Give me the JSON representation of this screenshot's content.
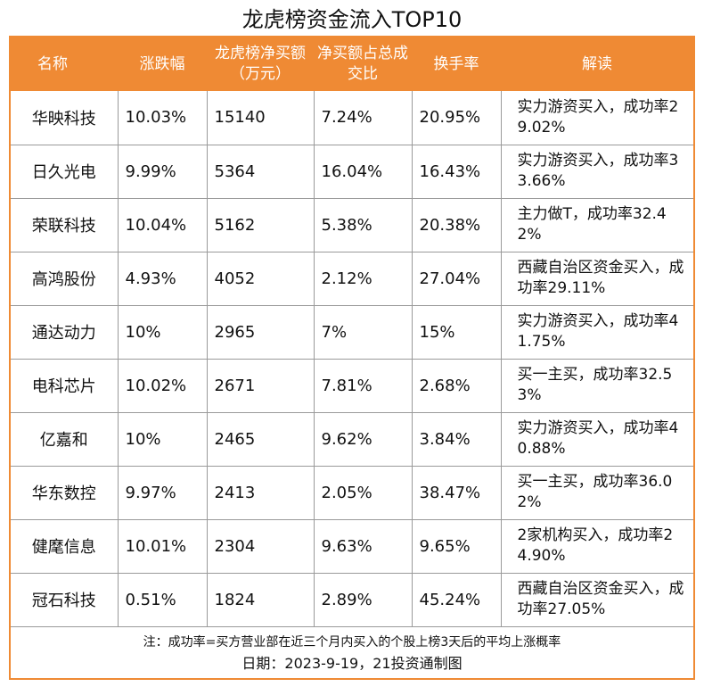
{
  "title": "龙虎榜资金流入TOP10",
  "headers": [
    "名称",
    "涨跌幅",
    "龙虎榜净买额（万元）",
    "净买额占总成交比",
    "换手率",
    "解读"
  ],
  "rows": [
    {
      "name": "华映科技",
      "change": "10.03%",
      "net_buy": "15140",
      "ratio": "7.24%",
      "turnover": "20.95%",
      "note": "实力游资买入，成功率29.02%"
    },
    {
      "name": "日久光电",
      "change": "9.99%",
      "net_buy": "5364",
      "ratio": "16.04%",
      "turnover": "16.43%",
      "note": "实力游资买入，成功率33.66%"
    },
    {
      "name": "荣联科技",
      "change": "10.04%",
      "net_buy": "5162",
      "ratio": "5.38%",
      "turnover": "20.38%",
      "note": "主力做T，成功率32.42%"
    },
    {
      "name": "高鸿股份",
      "change": "4.93%",
      "net_buy": "4052",
      "ratio": "2.12%",
      "turnover": "27.04%",
      "note": "西藏自治区资金买入，成功率29.11%"
    },
    {
      "name": "通达动力",
      "change": "10%",
      "net_buy": "2965",
      "ratio": "7%",
      "turnover": "15%",
      "note": "实力游资买入，成功率41.75%"
    },
    {
      "name": "电科芯片",
      "change": "10.02%",
      "net_buy": "2671",
      "ratio": "7.81%",
      "turnover": "2.68%",
      "note": "买一主买，成功率32.53%"
    },
    {
      "name": "亿嘉和",
      "change": "10%",
      "net_buy": "2465",
      "ratio": "9.62%",
      "turnover": "3.84%",
      "note": "实力游资买入，成功率40.88%"
    },
    {
      "name": "华东数控",
      "change": "9.97%",
      "net_buy": "2413",
      "ratio": "2.05%",
      "turnover": "38.47%",
      "note": "买一主买，成功率36.02%"
    },
    {
      "name": "健麾信息",
      "change": "10.01%",
      "net_buy": "2304",
      "ratio": "9.63%",
      "turnover": "9.65%",
      "note": "2家机构买入，成功率24.90%"
    },
    {
      "name": "冠石科技",
      "change": "0.51%",
      "net_buy": "1824",
      "ratio": "2.89%",
      "turnover": "45.24%",
      "note": "西藏自治区资金买入，成功率27.05%"
    }
  ],
  "footnote": "注：成功率=买方营业部在近三个月内买入的个股上榜3天后的平均上涨概率",
  "date_line": "日期：2023-9-19，21投资通制图"
}
